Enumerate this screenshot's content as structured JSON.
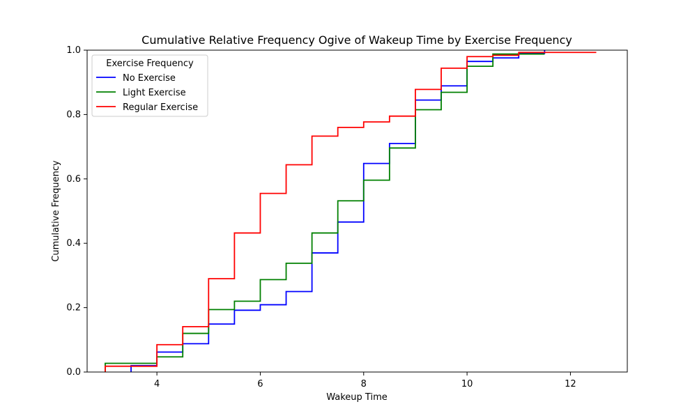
{
  "chart_data": {
    "type": "line",
    "title": "Cumulative Relative Frequency Ogive of Wakeup Time by Exercise Frequency",
    "xlabel": "Wakeup Time",
    "ylabel": "Cumulative Frequency",
    "xlim": [
      2.65,
      13.1
    ],
    "ylim": [
      0,
      1.0
    ],
    "x_ticks": [
      4,
      6,
      8,
      10,
      12
    ],
    "y_ticks": [
      0.0,
      0.2,
      0.4,
      0.6,
      0.8,
      1.0
    ],
    "grid": false,
    "legend": {
      "title": "Exercise Frequency",
      "placement": "top-left"
    },
    "series": [
      {
        "name": "No Exercise",
        "color": "#0000ff",
        "step_edges": [
          3.5,
          4.0,
          4.5,
          5.0,
          5.5,
          6.0,
          6.5,
          7.0,
          7.5,
          8.0,
          8.5,
          9.0,
          9.5,
          10.0,
          10.5,
          11.0,
          11.5
        ],
        "values": [
          0.0,
          0.02,
          0.062,
          0.088,
          0.149,
          0.192,
          0.209,
          0.25,
          0.37,
          0.466,
          0.648,
          0.71,
          0.845,
          0.889,
          0.965,
          0.976,
          0.99,
          1.0
        ]
      },
      {
        "name": "Light Exercise",
        "color": "#008000",
        "step_edges": [
          3.0,
          4.0,
          4.5,
          5.0,
          5.5,
          6.0,
          6.5,
          7.0,
          7.5,
          8.0,
          8.5,
          9.0,
          9.5,
          10.0,
          10.5,
          11.5
        ],
        "values": [
          0.0,
          0.027,
          0.047,
          0.12,
          0.194,
          0.22,
          0.287,
          0.338,
          0.432,
          0.532,
          0.596,
          0.696,
          0.815,
          0.869,
          0.95,
          0.988,
          0.988
        ]
      },
      {
        "name": "Regular Exercise",
        "color": "#ff0000",
        "step_edges": [
          3.0,
          4.0,
          4.5,
          5.0,
          5.5,
          6.0,
          6.5,
          7.0,
          7.5,
          8.0,
          8.5,
          9.0,
          9.5,
          10.0,
          10.5,
          11.0,
          12.5
        ],
        "values": [
          0.0,
          0.018,
          0.085,
          0.141,
          0.29,
          0.432,
          0.555,
          0.644,
          0.733,
          0.76,
          0.777,
          0.795,
          0.878,
          0.944,
          0.98,
          0.984,
          0.993,
          0.993
        ]
      }
    ]
  }
}
